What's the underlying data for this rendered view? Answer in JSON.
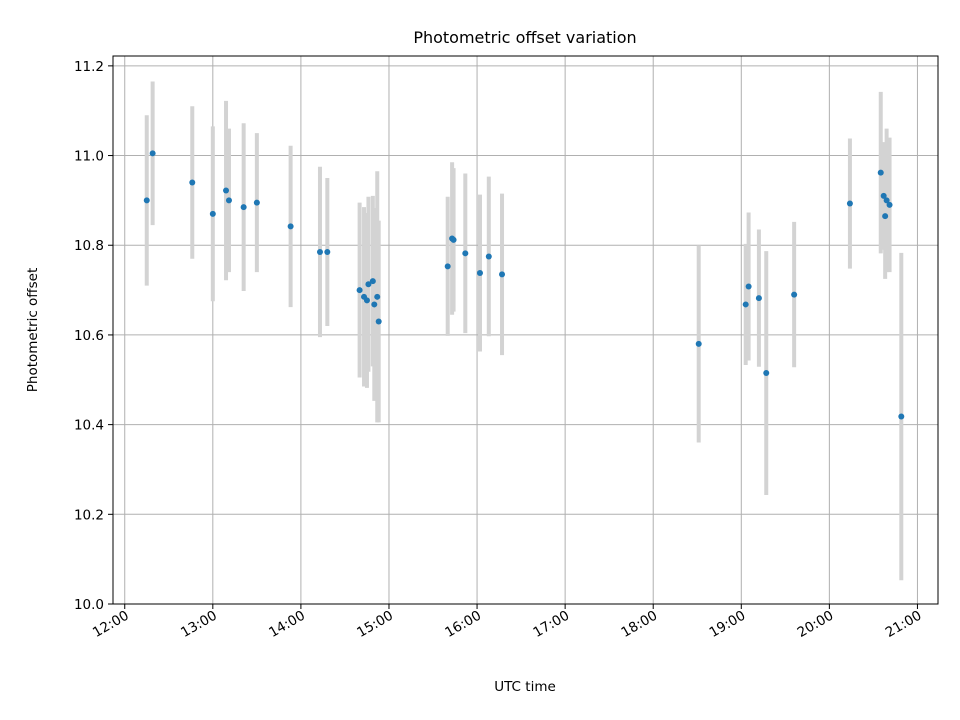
{
  "chart_data": {
    "type": "scatter",
    "title": "Photometric offset variation",
    "xlabel": "UTC time",
    "ylabel": "Photometric offset",
    "x_axis": {
      "type": "time",
      "range": [
        "11:52",
        "21:14"
      ],
      "ticks": [
        "12:00",
        "13:00",
        "14:00",
        "15:00",
        "16:00",
        "17:00",
        "18:00",
        "19:00",
        "20:00",
        "21:00"
      ]
    },
    "y_axis": {
      "range": [
        10.0,
        11.222
      ],
      "ticks": [
        "10.0",
        "10.2",
        "10.4",
        "10.6",
        "10.8",
        "11.0",
        "11.2"
      ]
    },
    "grid": true,
    "legend": "none",
    "marker_color": "#1f77b4",
    "errorbar_color": "#d3d3d3",
    "series": [
      {
        "points": [
          {
            "time": "12:15",
            "y": 10.9,
            "err": 0.19
          },
          {
            "time": "12:19",
            "y": 11.005,
            "err": 0.16
          },
          {
            "time": "12:46",
            "y": 10.94,
            "err": 0.17
          },
          {
            "time": "13:00",
            "y": 10.87,
            "err": 0.195
          },
          {
            "time": "13:09",
            "y": 10.922,
            "err": 0.2
          },
          {
            "time": "13:11",
            "y": 10.9,
            "err": 0.16
          },
          {
            "time": "13:21",
            "y": 10.885,
            "err": 0.187
          },
          {
            "time": "13:30",
            "y": 10.895,
            "err": 0.155
          },
          {
            "time": "13:53",
            "y": 10.842,
            "err": 0.18
          },
          {
            "time": "14:13",
            "y": 10.785,
            "err": 0.19
          },
          {
            "time": "14:18",
            "y": 10.785,
            "err": 0.165
          },
          {
            "time": "14:40",
            "y": 10.7,
            "err": 0.195
          },
          {
            "time": "14:43",
            "y": 10.685,
            "err": 0.2
          },
          {
            "time": "14:45",
            "y": 10.677,
            "err": 0.195
          },
          {
            "time": "14:46",
            "y": 10.713,
            "err": 0.195
          },
          {
            "time": "14:49",
            "y": 10.72,
            "err": 0.19
          },
          {
            "time": "14:50",
            "y": 10.668,
            "err": 0.215
          },
          {
            "time": "14:52",
            "y": 10.685,
            "err": 0.28
          },
          {
            "time": "14:53",
            "y": 10.63,
            "err": 0.225
          },
          {
            "time": "15:40",
            "y": 10.753,
            "err": 0.155
          },
          {
            "time": "15:43",
            "y": 10.815,
            "err": 0.17
          },
          {
            "time": "15:44",
            "y": 10.812,
            "err": 0.16
          },
          {
            "time": "15:52",
            "y": 10.782,
            "err": 0.178
          },
          {
            "time": "16:02",
            "y": 10.738,
            "err": 0.175
          },
          {
            "time": "16:08",
            "y": 10.775,
            "err": 0.178
          },
          {
            "time": "16:17",
            "y": 10.735,
            "err": 0.18
          },
          {
            "time": "18:31",
            "y": 10.58,
            "err": 0.22
          },
          {
            "time": "19:03",
            "y": 10.668,
            "err": 0.135
          },
          {
            "time": "19:05",
            "y": 10.708,
            "err": 0.165
          },
          {
            "time": "19:12",
            "y": 10.682,
            "err": 0.153
          },
          {
            "time": "19:17",
            "y": 10.515,
            "err": 0.272
          },
          {
            "time": "19:36",
            "y": 10.69,
            "err": 0.162
          },
          {
            "time": "20:14",
            "y": 10.893,
            "err": 0.145
          },
          {
            "time": "20:35",
            "y": 10.962,
            "err": 0.18
          },
          {
            "time": "20:37",
            "y": 10.91,
            "err": 0.12
          },
          {
            "time": "20:38",
            "y": 10.865,
            "err": 0.14
          },
          {
            "time": "20:39",
            "y": 10.9,
            "err": 0.16
          },
          {
            "time": "20:41",
            "y": 10.89,
            "err": 0.15
          },
          {
            "time": "20:49",
            "y": 10.418,
            "err": 0.365
          }
        ]
      }
    ]
  }
}
